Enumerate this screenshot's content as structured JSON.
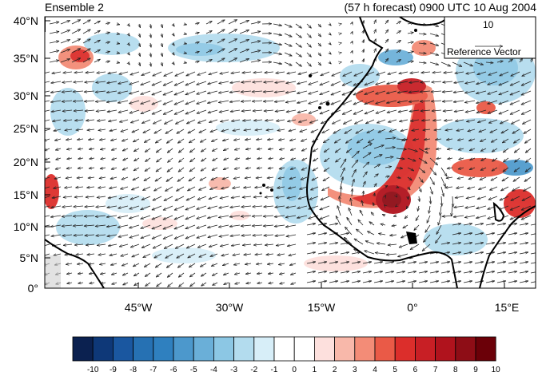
{
  "header": {
    "left_title": "Ensemble 2",
    "right_title": "(57 h forecast) 0900 UTC 10 Aug 2004"
  },
  "axes": {
    "lat_labels": [
      "40°N",
      "35°N",
      "30°N",
      "25°N",
      "20°N",
      "15°N",
      "10°N",
      "5°N",
      "0°"
    ],
    "lon_labels": [
      "45°W",
      "30°W",
      "15°W",
      "0°",
      "15°E"
    ]
  },
  "reference_vector": {
    "value": "10",
    "label": "Reference Vector"
  },
  "colorbar": {
    "labels": [
      "-10",
      "-9",
      "-8",
      "-7",
      "-6",
      "-5",
      "-4",
      "-3",
      "-2",
      "-1",
      "0",
      "1",
      "2",
      "3",
      "4",
      "5",
      "6",
      "7",
      "8",
      "9",
      "10"
    ],
    "colors": [
      "#0b2150",
      "#0e3878",
      "#1a57a0",
      "#2671b3",
      "#2f80bf",
      "#4c98cc",
      "#6aafd8",
      "#8cc7e4",
      "#b3dcee",
      "#d7eef8",
      "#ffffff",
      "#ffffff",
      "#fde0dd",
      "#f8b8aa",
      "#f38c77",
      "#ea5a47",
      "#dc2e2b",
      "#c81f25",
      "#b0131d",
      "#8e0d16",
      "#6b0008"
    ]
  }
}
